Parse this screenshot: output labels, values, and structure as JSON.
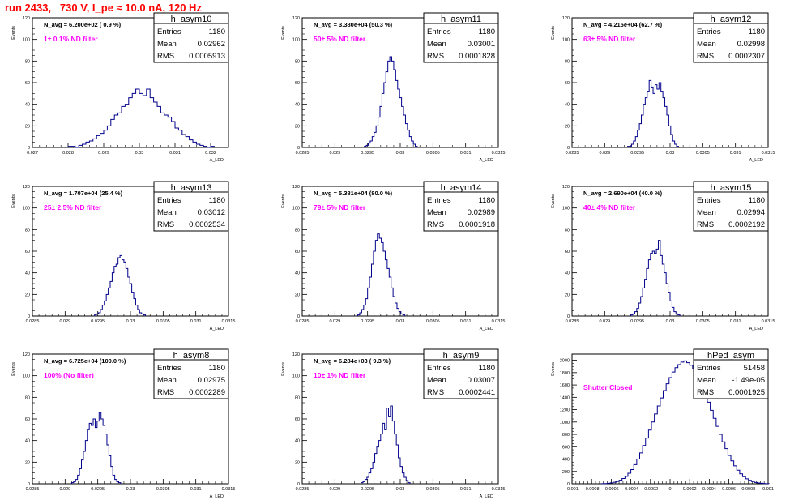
{
  "run_title": "run 2433,   730 V, I_pe ≈ 10.0 nA, 120 Hz",
  "colors": {
    "line": "#00008b",
    "annotation": "#ff00ff",
    "run_title": "#ff0000",
    "axis": "#000000"
  },
  "stat_labels": {
    "entries": "Entries",
    "mean": "Mean",
    "rms": "RMS"
  },
  "chart_data": [
    {
      "type": "histogram",
      "name": "h_asym10",
      "stats": {
        "entries": "1180",
        "mean": "0.02962",
        "rms": "0.0005913"
      },
      "navg": "N_avg = 6.200e+02 ( 0.9 %)",
      "filter": "1± 0.1% ND filter",
      "xlabel": "A_LED",
      "ylabel": "Events",
      "xlim": [
        0.027,
        0.0325
      ],
      "ylim": [
        0,
        120
      ],
      "xticks": [
        0.027,
        0.028,
        0.029,
        0.03,
        0.031,
        0.032
      ],
      "xticklabels": [
        "0.027",
        "0.028",
        "0.029",
        "0.03",
        "0.031",
        "0.032"
      ],
      "yticks": [
        0,
        20,
        40,
        60,
        80,
        100,
        120
      ],
      "yticklabels": [
        "0",
        "20",
        "40",
        "60",
        "80",
        "100",
        "120"
      ],
      "bins": {
        "start": 0.028,
        "width": 0.0001,
        "values": [
          1,
          1,
          0,
          2,
          3,
          5,
          6,
          8,
          11,
          13,
          16,
          20,
          26,
          30,
          32,
          38,
          40,
          46,
          50,
          54,
          50,
          48,
          54,
          46,
          42,
          38,
          32,
          30,
          28,
          24,
          18,
          16,
          12,
          10,
          7,
          5,
          3,
          2,
          1,
          0,
          1
        ]
      }
    },
    {
      "type": "histogram",
      "name": "h_asym11",
      "stats": {
        "entries": "1180",
        "mean": "0.03001",
        "rms": "0.0001828"
      },
      "navg": "N_avg = 3.380e+04 (50.3 %)",
      "filter": "50± 5% ND filter",
      "xlabel": "A_LED",
      "ylabel": "Events",
      "xlim": [
        0.0285,
        0.0315
      ],
      "ylim": [
        0,
        120
      ],
      "xticks": [
        0.0285,
        0.029,
        0.0295,
        0.03,
        0.0305,
        0.031,
        0.0315
      ],
      "xticklabels": [
        "0.0285",
        "0.029",
        "0.0295",
        "0.03",
        "0.0305",
        "0.031",
        "0.0315"
      ],
      "yticks": [
        0,
        20,
        40,
        60,
        80,
        100,
        120
      ],
      "yticklabels": [
        "0",
        "20",
        "40",
        "60",
        "80",
        "100",
        "120"
      ],
      "bins": {
        "start": 0.02945,
        "width": 3e-05,
        "values": [
          1,
          2,
          4,
          6,
          10,
          14,
          20,
          28,
          38,
          50,
          60,
          70,
          80,
          84,
          80,
          72,
          62,
          54,
          46,
          38,
          30,
          22,
          16,
          10,
          6,
          3,
          1
        ]
      }
    },
    {
      "type": "histogram",
      "name": "h_asym12",
      "stats": {
        "entries": "1180",
        "mean": "0.02998",
        "rms": "0.0002307"
      },
      "navg": "N_avg = 4.215e+04 (62.7 %)",
      "filter": "63± 5% ND filter",
      "xlabel": "A_LED",
      "ylabel": "Events",
      "xlim": [
        0.0285,
        0.0315
      ],
      "ylim": [
        0,
        120
      ],
      "xticks": [
        0.0285,
        0.029,
        0.0295,
        0.03,
        0.0305,
        0.031,
        0.0315
      ],
      "xticklabels": [
        "0.0285",
        "0.029",
        "0.0295",
        "0.03",
        "0.0305",
        "0.031",
        "0.0315"
      ],
      "yticks": [
        0,
        20,
        40,
        60,
        80,
        100,
        120
      ],
      "yticklabels": [
        "0",
        "20",
        "40",
        "60",
        "80",
        "100",
        "120"
      ],
      "bins": {
        "start": 0.02935,
        "width": 3e-05,
        "values": [
          1,
          1,
          3,
          6,
          10,
          16,
          22,
          30,
          40,
          46,
          52,
          62,
          56,
          50,
          58,
          54,
          60,
          52,
          46,
          38,
          30,
          20,
          12,
          6,
          3,
          1
        ]
      }
    },
    {
      "type": "histogram",
      "name": "h_asym13",
      "stats": {
        "entries": "1180",
        "mean": "0.03012",
        "rms": "0.0002534"
      },
      "navg": "N_avg = 1.707e+04 (25.4 %)",
      "filter": "25± 2.5% ND filter",
      "xlabel": "A_LED",
      "ylabel": "Events",
      "xlim": [
        0.0285,
        0.0315
      ],
      "ylim": [
        0,
        120
      ],
      "xticks": [
        0.0285,
        0.029,
        0.0295,
        0.03,
        0.0305,
        0.031,
        0.0315
      ],
      "xticklabels": [
        "0.0285",
        "0.029",
        "0.0295",
        "0.03",
        "0.0305",
        "0.031",
        "0.0315"
      ],
      "yticks": [
        0,
        20,
        40,
        60,
        80,
        100,
        120
      ],
      "yticklabels": [
        "0",
        "20",
        "40",
        "60",
        "80",
        "100",
        "120"
      ],
      "bins": {
        "start": 0.02945,
        "width": 3e-05,
        "values": [
          1,
          2,
          3,
          6,
          10,
          14,
          20,
          26,
          32,
          40,
          46,
          48,
          54,
          56,
          52,
          50,
          44,
          36,
          30,
          22,
          16,
          10,
          6,
          3,
          2,
          1
        ]
      }
    },
    {
      "type": "histogram",
      "name": "h_asym14",
      "stats": {
        "entries": "1180",
        "mean": "0.02989",
        "rms": "0.0001918"
      },
      "navg": "N_avg = 5.381e+04 (80.0 %)",
      "filter": "79± 5% ND filter",
      "xlabel": "A_LED",
      "ylabel": "Events",
      "xlim": [
        0.0285,
        0.0315
      ],
      "ylim": [
        0,
        120
      ],
      "xticks": [
        0.0285,
        0.029,
        0.0295,
        0.03,
        0.0305,
        0.031,
        0.0315
      ],
      "xticklabels": [
        "0.0285",
        "0.029",
        "0.0295",
        "0.03",
        "0.0305",
        "0.031",
        "0.0315"
      ],
      "yticks": [
        0,
        20,
        40,
        60,
        80,
        100,
        120
      ],
      "yticklabels": [
        "0",
        "20",
        "40",
        "60",
        "80",
        "100",
        "120"
      ],
      "bins": {
        "start": 0.02935,
        "width": 3e-05,
        "values": [
          1,
          3,
          6,
          10,
          16,
          26,
          36,
          48,
          60,
          70,
          76,
          72,
          68,
          60,
          52,
          44,
          36,
          26,
          18,
          12,
          7,
          4,
          2,
          1
        ]
      }
    },
    {
      "type": "histogram",
      "name": "h_asym15",
      "stats": {
        "entries": "1180",
        "mean": "0.02994",
        "rms": "0.0002192"
      },
      "navg": "N_avg = 2.690e+04 (40.0 %)",
      "filter": "40± 4% ND filter",
      "xlabel": "A_LED",
      "ylabel": "Events",
      "xlim": [
        0.0285,
        0.0315
      ],
      "ylim": [
        0,
        120
      ],
      "xticks": [
        0.0285,
        0.029,
        0.0295,
        0.03,
        0.0305,
        0.031,
        0.0315
      ],
      "xticklabels": [
        "0.0285",
        "0.029",
        "0.0295",
        "0.03",
        "0.0305",
        "0.031",
        "0.0315"
      ],
      "yticks": [
        0,
        20,
        40,
        60,
        80,
        100,
        120
      ],
      "yticklabels": [
        "0",
        "20",
        "40",
        "60",
        "80",
        "100",
        "120"
      ],
      "bins": {
        "start": 0.0294,
        "width": 3e-05,
        "values": [
          1,
          2,
          4,
          7,
          12,
          18,
          26,
          34,
          44,
          52,
          58,
          60,
          58,
          62,
          70,
          56,
          48,
          40,
          30,
          22,
          14,
          8,
          4,
          2,
          1
        ]
      }
    },
    {
      "type": "histogram",
      "name": "h_asym8",
      "stats": {
        "entries": "1180",
        "mean": "0.02975",
        "rms": "0.0002289"
      },
      "navg": "N_avg = 6.725e+04 (100.0 %)",
      "filter": "100% (No filter)",
      "xlabel": "A_LED",
      "ylabel": "Events",
      "xlim": [
        0.0285,
        0.0315
      ],
      "ylim": [
        0,
        120
      ],
      "xticks": [
        0.0285,
        0.029,
        0.0295,
        0.03,
        0.0305,
        0.031,
        0.0315
      ],
      "xticklabels": [
        "0.0285",
        "0.029",
        "0.0295",
        "0.03",
        "0.0305",
        "0.031",
        "0.0315"
      ],
      "yticks": [
        0,
        20,
        40,
        60,
        80,
        100,
        120
      ],
      "yticklabels": [
        "0",
        "20",
        "40",
        "60",
        "80",
        "100",
        "120"
      ],
      "bins": {
        "start": 0.0291,
        "width": 3e-05,
        "values": [
          1,
          2,
          4,
          8,
          14,
          22,
          30,
          40,
          50,
          56,
          54,
          60,
          52,
          58,
          66,
          60,
          54,
          46,
          36,
          26,
          16,
          8,
          4,
          2,
          1
        ]
      }
    },
    {
      "type": "histogram",
      "name": "h_asym9",
      "stats": {
        "entries": "1180",
        "mean": "0.03007",
        "rms": "0.0002441"
      },
      "navg": "N_avg = 6.284e+03 ( 9.3 %)",
      "filter": "10± 1% ND filter",
      "xlabel": "A_LED",
      "ylabel": "Events",
      "xlim": [
        0.0285,
        0.0315
      ],
      "ylim": [
        0,
        120
      ],
      "xticks": [
        0.0285,
        0.029,
        0.0295,
        0.03,
        0.0305,
        0.031,
        0.0315
      ],
      "xticklabels": [
        "0.0285",
        "0.029",
        "0.0295",
        "0.03",
        "0.0305",
        "0.031",
        "0.0315"
      ],
      "yticks": [
        0,
        20,
        40,
        60,
        80,
        100,
        120
      ],
      "yticklabels": [
        "0",
        "20",
        "40",
        "60",
        "80",
        "100",
        "120"
      ],
      "bins": {
        "start": 0.0294,
        "width": 3e-05,
        "values": [
          1,
          2,
          4,
          6,
          10,
          14,
          20,
          28,
          34,
          40,
          46,
          56,
          50,
          70,
          62,
          72,
          58,
          46,
          36,
          24,
          16,
          10,
          6,
          3,
          1
        ]
      }
    },
    {
      "type": "histogram",
      "name": "hPed_asym",
      "stats": {
        "entries": "51458",
        "mean": "-1.49e-05",
        "rms": "0.0001925"
      },
      "filter": "Shutter Closed",
      "xlabel": "",
      "ylabel": "Events",
      "xlim": [
        -0.001,
        0.001
      ],
      "ylim": [
        0,
        2100
      ],
      "xticks": [
        -0.001,
        -0.0008,
        -0.0006,
        -0.0004,
        -0.0002,
        0,
        0.0002,
        0.0004,
        0.0006,
        0.0008,
        0.001
      ],
      "xticklabels": [
        "-0.001",
        "-0.0008",
        "-0.0006",
        "-0.0004",
        "-0.0002",
        "0",
        "0.0002",
        "0.0004",
        "0.0006",
        "0.0008",
        "0.001"
      ],
      "yticks": [
        0,
        200,
        400,
        600,
        800,
        1000,
        1200,
        1400,
        1600,
        1800,
        2000
      ],
      "yticklabels": [
        "0",
        "200",
        "400",
        "600",
        "800",
        "1000",
        "1200",
        "1400",
        "1600",
        "1800",
        "2000"
      ],
      "bins": {
        "start": -0.0007,
        "width": 3e-05,
        "values": [
          2,
          4,
          8,
          14,
          24,
          38,
          58,
          86,
          120,
          170,
          230,
          310,
          400,
          500,
          620,
          740,
          870,
          1000,
          1130,
          1260,
          1390,
          1510,
          1620,
          1720,
          1810,
          1880,
          1930,
          1970,
          1990,
          1960,
          1920,
          1860,
          1780,
          1680,
          1570,
          1450,
          1320,
          1190,
          1060,
          930,
          800,
          680,
          570,
          460,
          370,
          290,
          220,
          160,
          115,
          80,
          55,
          36,
          22,
          13,
          8,
          4,
          2
        ]
      }
    }
  ]
}
